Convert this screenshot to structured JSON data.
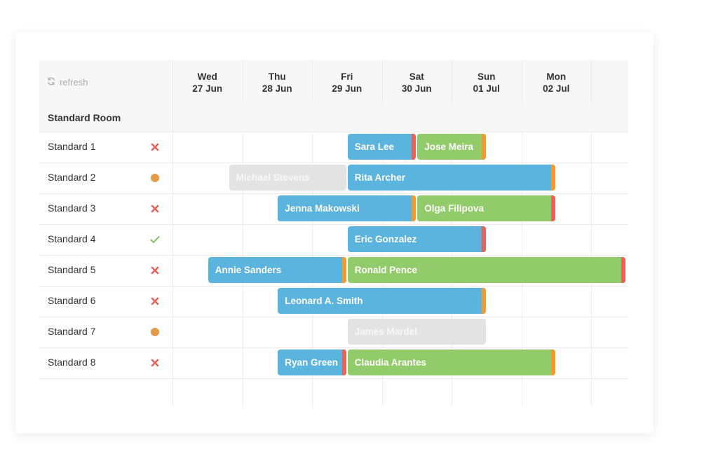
{
  "toolbar": {
    "refresh_label": "refresh"
  },
  "days": [
    {
      "dow": "Wed",
      "date": "27 Jun"
    },
    {
      "dow": "Thu",
      "date": "28 Jun"
    },
    {
      "dow": "Fri",
      "date": "29 Jun"
    },
    {
      "dow": "Sat",
      "date": "30 Jun"
    },
    {
      "dow": "Sun",
      "date": "01 Jul"
    },
    {
      "dow": "Mon",
      "date": "02 Jul"
    }
  ],
  "group_name": "Standard Room",
  "rooms": [
    {
      "name": "Standard 1",
      "status": "cross"
    },
    {
      "name": "Standard 2",
      "status": "dot"
    },
    {
      "name": "Standard 3",
      "status": "cross"
    },
    {
      "name": "Standard 4",
      "status": "check"
    },
    {
      "name": "Standard 5",
      "status": "cross"
    },
    {
      "name": "Standard 6",
      "status": "cross"
    },
    {
      "name": "Standard 7",
      "status": "dot"
    },
    {
      "name": "Standard 8",
      "status": "cross"
    }
  ],
  "bookings": [
    {
      "room": 0,
      "guest": "Sara Lee",
      "color": "blue",
      "tip": "#e8625a",
      "start": 2.5,
      "end": 3.5
    },
    {
      "room": 0,
      "guest": "Jose Meira",
      "color": "green",
      "tip": "#f29a2e",
      "start": 3.5,
      "end": 4.5
    },
    {
      "room": 1,
      "guest": "Michael Stevens",
      "color": "gray",
      "tip": "",
      "start": 0.8,
      "end": 2.5
    },
    {
      "room": 1,
      "guest": "Rita Archer",
      "color": "blue",
      "tip": "#f29a2e",
      "start": 2.5,
      "end": 5.5
    },
    {
      "room": 2,
      "guest": "Jenna Makowski",
      "color": "blue",
      "tip": "#f29a2e",
      "start": 1.5,
      "end": 3.5
    },
    {
      "room": 2,
      "guest": "Olga Filipova",
      "color": "green",
      "tip": "#e8625a",
      "start": 3.5,
      "end": 5.5
    },
    {
      "room": 3,
      "guest": "Eric Gonzalez",
      "color": "blue",
      "tip": "#e8625a",
      "start": 2.5,
      "end": 4.5
    },
    {
      "room": 4,
      "guest": "Annie Sanders",
      "color": "blue",
      "tip": "#f29a2e",
      "start": 0.5,
      "end": 2.5
    },
    {
      "room": 4,
      "guest": "Ronald Pence",
      "color": "green",
      "tip": "#e8625a",
      "start": 2.5,
      "end": 6.5
    },
    {
      "room": 5,
      "guest": "Leonard  A. Smith",
      "color": "blue",
      "tip": "#f29a2e",
      "start": 1.5,
      "end": 4.5
    },
    {
      "room": 6,
      "guest": "James Mardel",
      "color": "gray",
      "tip": "",
      "start": 2.5,
      "end": 4.5
    },
    {
      "room": 7,
      "guest": "Ryan Green",
      "color": "blue",
      "tip": "#e8625a",
      "start": 1.5,
      "end": 2.5
    },
    {
      "room": 7,
      "guest": "Claudia Arantes",
      "color": "green",
      "tip": "#f29a2e",
      "start": 2.5,
      "end": 5.5
    }
  ],
  "colors": {
    "status_cross": "#e8625a",
    "status_dot": "#e39a4d",
    "status_check": "#7ec461"
  }
}
